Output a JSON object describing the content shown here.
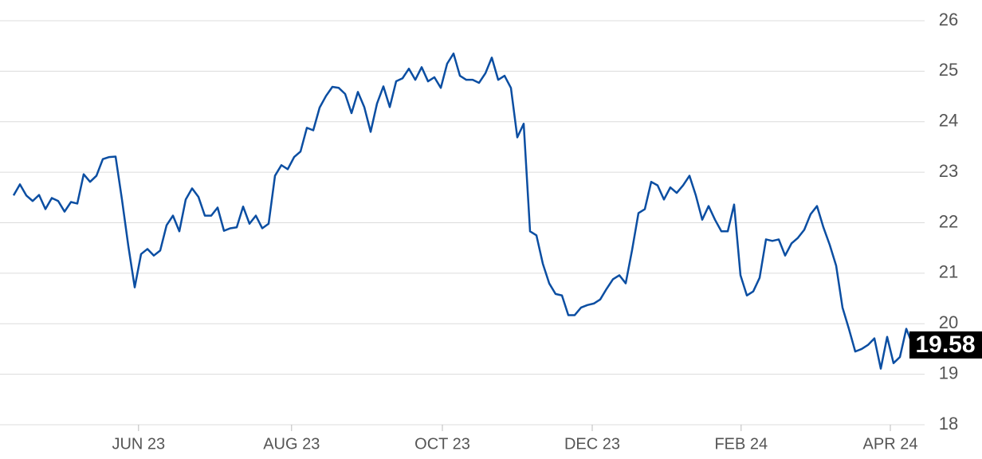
{
  "chart_data": {
    "type": "line",
    "color": "#0b4ea2",
    "values": [
      22.54,
      22.76,
      22.54,
      22.43,
      22.55,
      22.27,
      22.49,
      22.43,
      22.22,
      22.41,
      22.38,
      22.96,
      22.81,
      22.93,
      23.26,
      23.3,
      23.31,
      22.46,
      21.54,
      20.72,
      21.38,
      21.48,
      21.35,
      21.45,
      21.95,
      22.14,
      21.83,
      22.46,
      22.68,
      22.51,
      22.14,
      22.14,
      22.3,
      21.84,
      21.89,
      21.91,
      22.32,
      21.98,
      22.14,
      21.89,
      21.98,
      22.93,
      23.14,
      23.06,
      23.3,
      23.41,
      23.88,
      23.83,
      24.28,
      24.51,
      24.69,
      24.67,
      24.55,
      24.17,
      24.59,
      24.29,
      23.8,
      24.36,
      24.7,
      24.29,
      24.8,
      24.86,
      25.05,
      24.83,
      25.08,
      24.8,
      24.88,
      24.67,
      25.15,
      25.35,
      24.91,
      24.83,
      24.83,
      24.77,
      24.96,
      25.27,
      24.83,
      24.91,
      24.67,
      23.69,
      23.96,
      21.83,
      21.75,
      21.19,
      20.8,
      20.59,
      20.56,
      20.17,
      20.17,
      20.32,
      20.37,
      20.4,
      20.48,
      20.69,
      20.88,
      20.96,
      20.8,
      21.46,
      22.19,
      22.27,
      22.81,
      22.74,
      22.46,
      22.7,
      22.59,
      22.74,
      22.93,
      22.54,
      22.06,
      22.33,
      22.06,
      21.83,
      21.83,
      22.36,
      20.96,
      20.56,
      20.64,
      20.91,
      21.67,
      21.64,
      21.67,
      21.35,
      21.59,
      21.7,
      21.86,
      22.17,
      22.33,
      21.91,
      21.56,
      21.15,
      20.32,
      19.9,
      19.45,
      19.5,
      19.58,
      19.71,
      19.11,
      19.74,
      19.22,
      19.34,
      19.9,
      19.58
    ],
    "xlim": [
      0,
      141
    ],
    "xticks": [
      {
        "value": 19.6,
        "label": "JUN 23"
      },
      {
        "value": 43.6,
        "label": "AUG 23"
      },
      {
        "value": 67.25,
        "label": "OCT 23"
      },
      {
        "value": 90.75,
        "label": "DEC 23"
      },
      {
        "value": 114.1,
        "label": "FEB 24"
      },
      {
        "value": 137.5,
        "label": "APR 24"
      }
    ],
    "ylim": [
      18,
      26
    ],
    "yticks": [
      18,
      19,
      20,
      21,
      22,
      23,
      24,
      25,
      26
    ],
    "grid": true
  }
}
